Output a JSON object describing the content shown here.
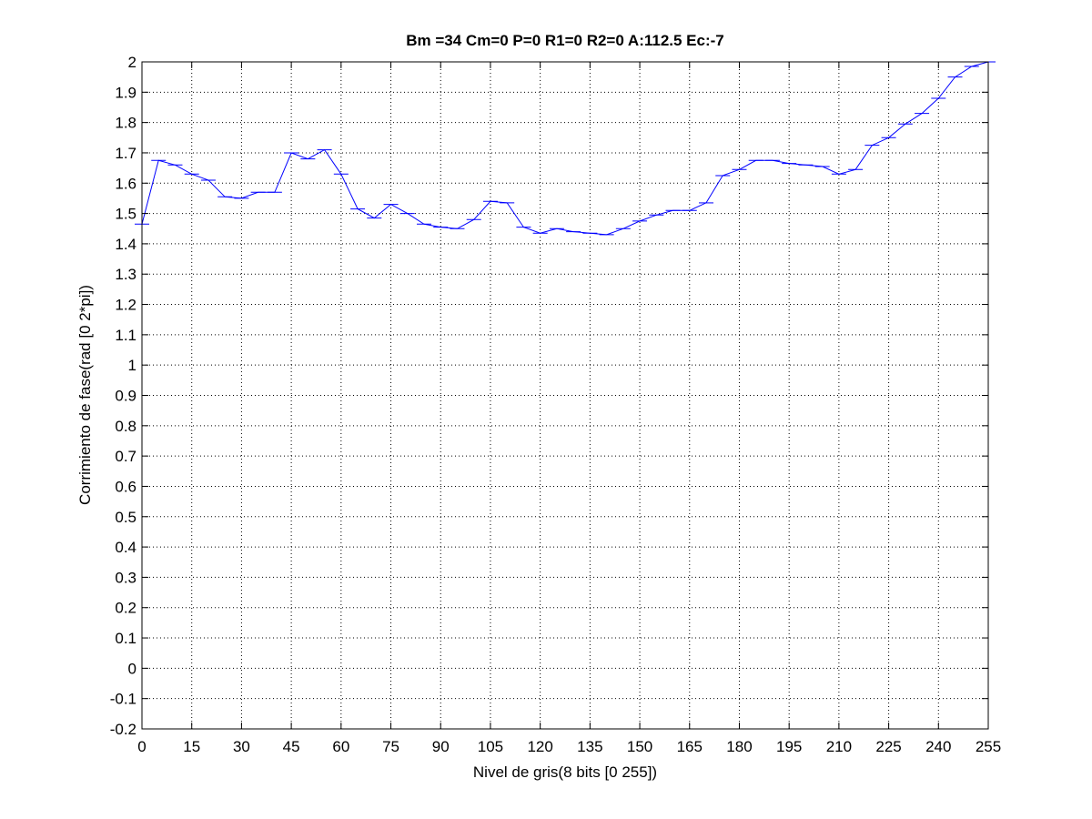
{
  "chart_data": {
    "type": "line",
    "title": "Bm =34  Cm=0  P=0  R1=0  R2=0  A:112.5  Ec:-7",
    "xlabel": "Nivel de gris(8 bits [0 255])",
    "ylabel": "Corrimiento de fase(rad [0 2*pi])",
    "xlim": [
      0,
      255
    ],
    "ylim": [
      -0.2,
      2
    ],
    "xticks": [
      0,
      15,
      30,
      45,
      60,
      75,
      90,
      105,
      120,
      135,
      150,
      165,
      180,
      195,
      210,
      225,
      240,
      255
    ],
    "yticks": [
      -0.2,
      -0.1,
      0,
      0.1,
      0.2,
      0.3,
      0.4,
      0.5,
      0.6,
      0.7,
      0.8,
      0.9,
      1,
      1.1,
      1.2,
      1.3,
      1.4,
      1.5,
      1.6,
      1.7,
      1.8,
      1.9,
      2
    ],
    "xtick_labels": [
      "0",
      "15",
      "30",
      "45",
      "60",
      "75",
      "90",
      "105",
      "120",
      "135",
      "150",
      "165",
      "180",
      "195",
      "210",
      "225",
      "240",
      "255"
    ],
    "ytick_labels": [
      "-0.2",
      "-0.1",
      "0",
      "0.1",
      "0.2",
      "0.3",
      "0.4",
      "0.5",
      "0.6",
      "0.7",
      "0.8",
      "0.9",
      "1",
      "1.1",
      "1.2",
      "1.3",
      "1.4",
      "1.5",
      "1.6",
      "1.7",
      "1.8",
      "1.9",
      "2"
    ],
    "grid": true,
    "line_color": "#0000ff",
    "x": [
      0,
      5,
      10,
      15,
      20,
      25,
      30,
      35,
      40,
      45,
      50,
      55,
      60,
      65,
      70,
      75,
      80,
      85,
      90,
      95,
      100,
      105,
      110,
      115,
      120,
      125,
      130,
      135,
      140,
      145,
      150,
      155,
      160,
      165,
      170,
      175,
      180,
      185,
      190,
      195,
      200,
      205,
      210,
      215,
      220,
      225,
      230,
      235,
      240,
      245,
      250,
      255
    ],
    "y": [
      1.465,
      1.675,
      1.66,
      1.63,
      1.61,
      1.555,
      1.55,
      1.57,
      1.57,
      1.7,
      1.68,
      1.71,
      1.63,
      1.515,
      1.485,
      1.53,
      1.5,
      1.465,
      1.455,
      1.45,
      1.48,
      1.54,
      1.535,
      1.455,
      1.435,
      1.45,
      1.44,
      1.435,
      1.43,
      1.45,
      1.475,
      1.495,
      1.51,
      1.51,
      1.535,
      1.625,
      1.645,
      1.675,
      1.675,
      1.665,
      1.66,
      1.655,
      1.63,
      1.645,
      1.725,
      1.75,
      1.795,
      1.83,
      1.88,
      1.95,
      1.985,
      2.0
    ]
  }
}
